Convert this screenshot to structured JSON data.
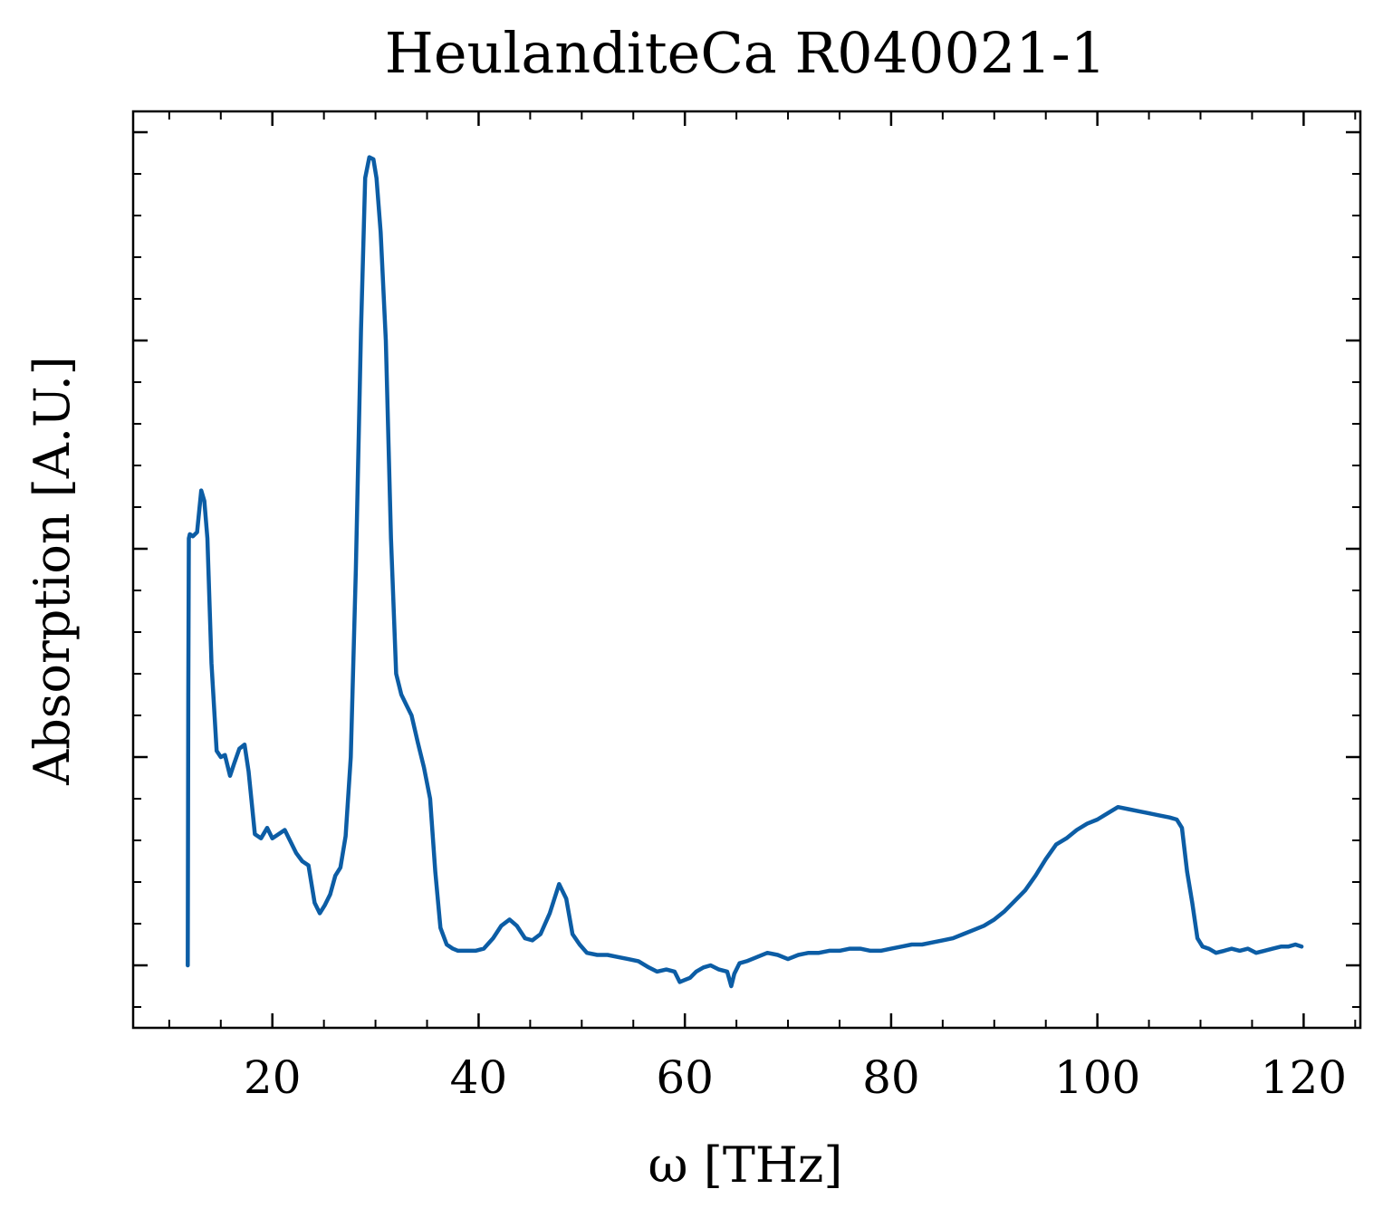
{
  "chart_data": {
    "type": "line",
    "title": "HeulanditeCa R040021-1",
    "xlabel": "ω [THz]",
    "ylabel": "Absorption [A.U.]",
    "xlim": [
      6.5,
      125.5
    ],
    "ylim": [
      -0.03,
      0.41
    ],
    "x_ticks": [
      20,
      40,
      60,
      80,
      100,
      120
    ],
    "x_tick_labels": [
      "20",
      "40",
      "60",
      "80",
      "100",
      "120"
    ],
    "x_minor_step": 5,
    "y_ticks": [
      0.0,
      0.1,
      0.2,
      0.3,
      0.4
    ],
    "y_tick_labels_shown": false,
    "y_minor_step": 0.02,
    "grid": false,
    "legend": "none",
    "color": "#0C5DA5",
    "series": [
      {
        "x": [
          11.8,
          11.85,
          11.9,
          12.0,
          12.3,
          12.7,
          13.1,
          13.4,
          13.7,
          14.1,
          14.6,
          15.0,
          15.4,
          15.9,
          16.3,
          16.8,
          17.3,
          17.7,
          18.3,
          18.9,
          19.5,
          20.0,
          20.6,
          21.2,
          21.7,
          22.3,
          22.9,
          23.5,
          24.1,
          24.6,
          25.1,
          25.6,
          26.1,
          26.6,
          27.1,
          27.6,
          28.1,
          28.6,
          29.0,
          29.4,
          29.8,
          30.1,
          30.5,
          31.0,
          31.5,
          32.0,
          32.5,
          33.0,
          33.5,
          34.1,
          34.7,
          35.3,
          35.8,
          36.3,
          36.9,
          37.5,
          38.0,
          38.8,
          39.7,
          40.5,
          41.4,
          42.2,
          43.0,
          43.7,
          44.5,
          45.2,
          46.0,
          46.9,
          47.8,
          48.5,
          49.1,
          49.8,
          50.5,
          51.5,
          52.5,
          53.5,
          54.5,
          55.5,
          56.5,
          57.3,
          58.2,
          59.0,
          59.5,
          60.0,
          60.5,
          61.1,
          61.8,
          62.5,
          63.3,
          64.1,
          64.5,
          64.8,
          65.3,
          66.0,
          67.0,
          68.0,
          69.0,
          70.0,
          71.0,
          72.0,
          73.0,
          74.0,
          75.0,
          76.0,
          77.0,
          78.0,
          79.0,
          80.0,
          81.0,
          82.0,
          83.0,
          84.0,
          85.0,
          86.0,
          87.0,
          88.0,
          89.0,
          90.0,
          91.0,
          92.0,
          93.0,
          94.0,
          95.0,
          96.0,
          97.0,
          98.0,
          99.0,
          100.0,
          101.0,
          102.0,
          103.0,
          104.0,
          105.0,
          106.0,
          107.0,
          107.7,
          108.2,
          108.7,
          109.2,
          109.7,
          110.2,
          110.8,
          111.5,
          112.3,
          113.0,
          113.8,
          114.6,
          115.4,
          116.2,
          117.0,
          117.8,
          118.5,
          119.2,
          119.8
        ],
        "y": [
          0.0,
          0.13,
          0.205,
          0.207,
          0.206,
          0.208,
          0.228,
          0.223,
          0.205,
          0.145,
          0.103,
          0.1,
          0.101,
          0.091,
          0.097,
          0.104,
          0.106,
          0.093,
          0.063,
          0.061,
          0.066,
          0.061,
          0.063,
          0.065,
          0.06,
          0.054,
          0.05,
          0.048,
          0.03,
          0.025,
          0.029,
          0.034,
          0.043,
          0.047,
          0.062,
          0.1,
          0.19,
          0.305,
          0.378,
          0.388,
          0.387,
          0.378,
          0.352,
          0.3,
          0.205,
          0.14,
          0.13,
          0.125,
          0.12,
          0.107,
          0.095,
          0.08,
          0.045,
          0.018,
          0.01,
          0.008,
          0.007,
          0.007,
          0.007,
          0.008,
          0.013,
          0.019,
          0.022,
          0.019,
          0.013,
          0.012,
          0.015,
          0.025,
          0.039,
          0.032,
          0.015,
          0.01,
          0.006,
          0.005,
          0.005,
          0.004,
          0.003,
          0.002,
          -0.001,
          -0.003,
          -0.002,
          -0.003,
          -0.008,
          -0.007,
          -0.006,
          -0.003,
          -0.001,
          0.0,
          -0.002,
          -0.003,
          -0.01,
          -0.004,
          0.001,
          0.002,
          0.004,
          0.006,
          0.005,
          0.003,
          0.005,
          0.006,
          0.006,
          0.007,
          0.007,
          0.008,
          0.008,
          0.007,
          0.007,
          0.008,
          0.009,
          0.01,
          0.01,
          0.011,
          0.012,
          0.013,
          0.015,
          0.017,
          0.019,
          0.022,
          0.026,
          0.031,
          0.036,
          0.043,
          0.051,
          0.058,
          0.061,
          0.065,
          0.068,
          0.07,
          0.073,
          0.076,
          0.075,
          0.074,
          0.073,
          0.072,
          0.071,
          0.07,
          0.066,
          0.045,
          0.03,
          0.013,
          0.009,
          0.008,
          0.006,
          0.007,
          0.008,
          0.007,
          0.008,
          0.006,
          0.007,
          0.008,
          0.009,
          0.009,
          0.01,
          0.009
        ]
      }
    ]
  }
}
